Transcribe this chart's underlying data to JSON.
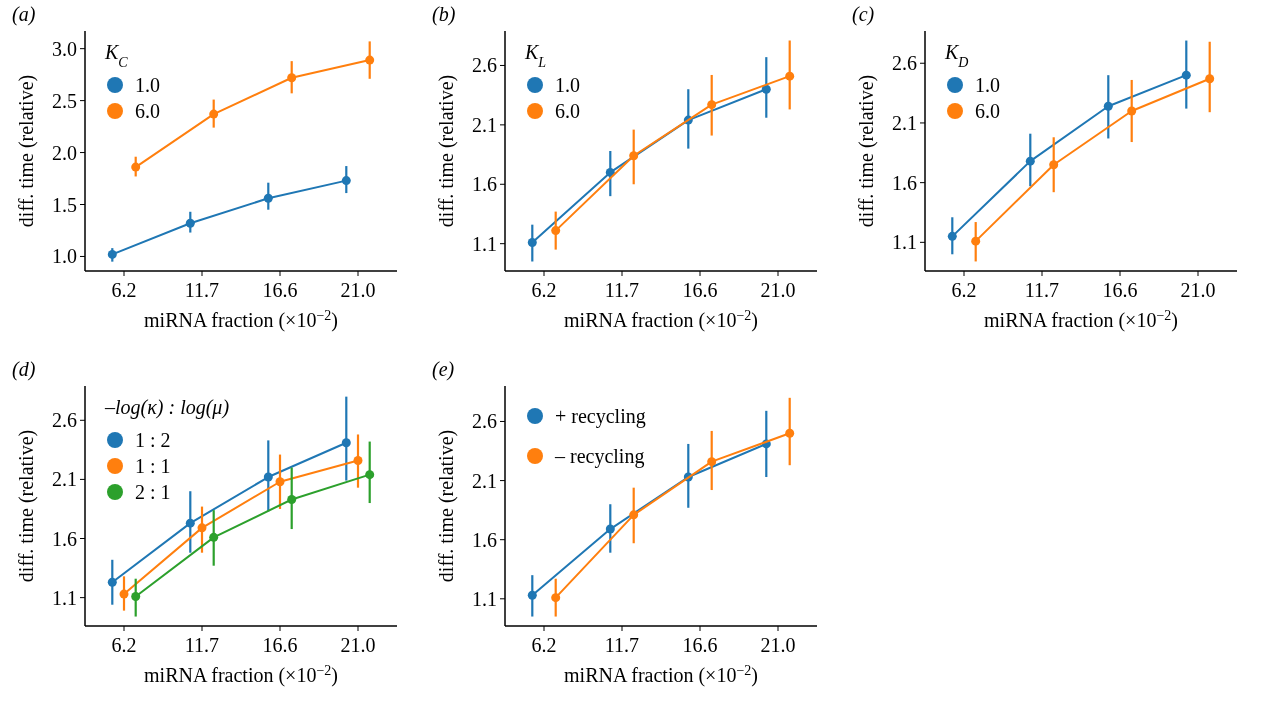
{
  "chart_data": [
    {
      "type": "line",
      "title": "(a)",
      "xlabel": "miRNA fraction (×10$^{−2}$)",
      "ylabel": "diff. time (relative)",
      "legend_title": "K$_{C}$",
      "legend": "top left",
      "marker": "circle",
      "line_style": "solid",
      "categories": [
        "6.2",
        "11.7",
        "16.6",
        "21.0"
      ],
      "ylim": [
        0.86,
        3.17
      ],
      "yticks": [
        {
          "value": 1,
          "label": "1.0"
        },
        1.5,
        {
          "value": 2,
          "label": "2.0"
        },
        2.5,
        {
          "value": 3,
          "label": "3.0"
        }
      ],
      "series": [
        {
          "name": "1.0",
          "color": "#1f77b4",
          "values": [
            1.02,
            1.32,
            1.56,
            1.73
          ],
          "errors": [
            [
              0.95,
              1.08
            ],
            [
              1.23,
              1.43
            ],
            [
              1.45,
              1.71
            ],
            [
              1.61,
              1.87
            ]
          ]
        },
        {
          "name": "6.0",
          "color": "#ff7f0e",
          "values": [
            1.86,
            2.37,
            2.72,
            2.89
          ],
          "errors": [
            [
              1.77,
              1.96
            ],
            [
              2.24,
              2.51
            ],
            [
              2.57,
              2.88
            ],
            [
              2.71,
              3.07
            ]
          ]
        }
      ]
    },
    {
      "type": "line",
      "title": "(b)",
      "xlabel": "miRNA fraction (×10$^{−2}$)",
      "ylabel": "diff. time (relative)",
      "legend_title": "K$_{L}$",
      "legend": "top left",
      "marker": "circle",
      "line_style": "solid",
      "categories": [
        "6.2",
        "11.7",
        "16.6",
        "21.0"
      ],
      "ylim": [
        0.87,
        2.89
      ],
      "yticks": [
        1.1,
        1.6,
        2.1,
        2.6
      ],
      "series": [
        {
          "name": "1.0",
          "color": "#1f77b4",
          "values": [
            1.11,
            1.7,
            2.14,
            2.4
          ],
          "errors": [
            [
              0.95,
              1.26
            ],
            [
              1.5,
              1.88
            ],
            [
              1.9,
              2.4
            ],
            [
              2.16,
              2.67
            ]
          ]
        },
        {
          "name": "6.0",
          "color": "#ff7f0e",
          "values": [
            1.21,
            1.84,
            2.27,
            2.51
          ],
          "errors": [
            [
              1.05,
              1.37
            ],
            [
              1.6,
              2.06
            ],
            [
              2.01,
              2.52
            ],
            [
              2.23,
              2.81
            ]
          ]
        }
      ]
    },
    {
      "type": "line",
      "title": "(c)",
      "xlabel": "miRNA fraction (×10$^{−2}$)",
      "ylabel": "diff. time (relative)",
      "legend_title": "K$_{D}$",
      "legend": "top left",
      "marker": "circle",
      "line_style": "solid",
      "categories": [
        "6.2",
        "11.7",
        "16.6",
        "21.0"
      ],
      "ylim": [
        0.86,
        2.87
      ],
      "yticks": [
        1.1,
        1.6,
        2.1,
        2.6
      ],
      "series": [
        {
          "name": "1.0",
          "color": "#1f77b4",
          "values": [
            1.15,
            1.78,
            2.24,
            2.5
          ],
          "errors": [
            [
              1.0,
              1.31
            ],
            [
              1.57,
              2.01
            ],
            [
              1.97,
              2.5
            ],
            [
              2.22,
              2.79
            ]
          ]
        },
        {
          "name": "6.0",
          "color": "#ff7f0e",
          "values": [
            1.11,
            1.75,
            2.2,
            2.47
          ],
          "errors": [
            [
              0.94,
              1.27
            ],
            [
              1.52,
              1.98
            ],
            [
              1.94,
              2.46
            ],
            [
              2.19,
              2.78
            ]
          ]
        }
      ]
    },
    {
      "type": "line",
      "title": "(d)",
      "xlabel": "miRNA fraction (×10$^{−2}$)",
      "ylabel": "diff. time (relative)",
      "legend_title": "–log(κ) : log(μ)",
      "legend": "top left",
      "marker": "circle",
      "line_style": "solid",
      "categories": [
        "6.2",
        "11.7",
        "16.6",
        "21.0"
      ],
      "ylim": [
        0.86,
        2.89
      ],
      "yticks": [
        1.1,
        1.6,
        2.1,
        2.6
      ],
      "series": [
        {
          "name": "1 : 2",
          "color": "#1f77b4",
          "values": [
            1.23,
            1.73,
            2.12,
            2.41
          ],
          "errors": [
            [
              1.04,
              1.42
            ],
            [
              1.48,
              2.0
            ],
            [
              1.83,
              2.43
            ],
            [
              2.09,
              2.8
            ]
          ]
        },
        {
          "name": "1 : 1",
          "color": "#ff7f0e",
          "values": [
            1.13,
            1.69,
            2.08,
            2.26
          ],
          "errors": [
            [
              0.99,
              1.28
            ],
            [
              1.48,
              1.87
            ],
            [
              1.85,
              2.31
            ],
            [
              2.03,
              2.48
            ]
          ]
        },
        {
          "name": "2 : 1",
          "color": "#2ca02c",
          "values": [
            1.11,
            1.61,
            1.93,
            2.14
          ],
          "errors": [
            [
              0.94,
              1.26
            ],
            [
              1.37,
              1.84
            ],
            [
              1.68,
              2.2
            ],
            [
              1.9,
              2.42
            ]
          ]
        }
      ]
    },
    {
      "type": "line",
      "title": "(e)",
      "xlabel": "miRNA fraction (×10$^{−2}$)",
      "ylabel": "diff. time (relative)",
      "legend": "top left",
      "marker": "circle",
      "line_style": "solid",
      "categories": [
        "6.2",
        "11.7",
        "16.6",
        "21.0"
      ],
      "ylim": [
        0.87,
        2.9
      ],
      "yticks": [
        1.1,
        1.6,
        2.1,
        2.6
      ],
      "series": [
        {
          "name": "+ recycling",
          "color": "#1f77b4",
          "values": [
            1.13,
            1.69,
            2.13,
            2.41
          ],
          "errors": [
            [
              0.95,
              1.3
            ],
            [
              1.49,
              1.9
            ],
            [
              1.87,
              2.41
            ],
            [
              2.13,
              2.69
            ]
          ]
        },
        {
          "name": "– recycling",
          "color": "#ff7f0e",
          "values": [
            1.11,
            1.81,
            2.26,
            2.5
          ],
          "errors": [
            [
              0.95,
              1.27
            ],
            [
              1.57,
              2.04
            ],
            [
              2.02,
              2.52
            ],
            [
              2.23,
              2.8
            ]
          ]
        }
      ]
    }
  ]
}
